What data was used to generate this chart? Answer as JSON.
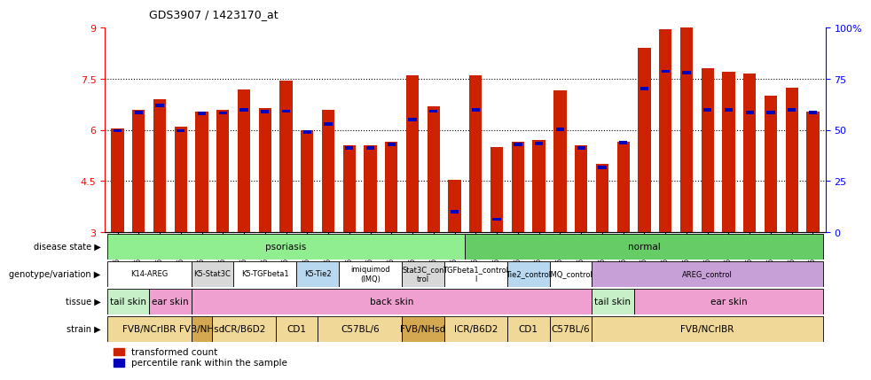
{
  "title": "GDS3907 / 1423170_at",
  "samples": [
    "GSM684694",
    "GSM684695",
    "GSM684696",
    "GSM684688",
    "GSM684689",
    "GSM684690",
    "GSM684700",
    "GSM684701",
    "GSM684704",
    "GSM684705",
    "GSM684706",
    "GSM684676",
    "GSM684677",
    "GSM684678",
    "GSM684682",
    "GSM684683",
    "GSM684684",
    "GSM684702",
    "GSM684703",
    "GSM684707",
    "GSM684708",
    "GSM684709",
    "GSM684679",
    "GSM684680",
    "GSM684681",
    "GSM684685",
    "GSM684686",
    "GSM684687",
    "GSM684697",
    "GSM684698",
    "GSM684699",
    "GSM684691",
    "GSM684692",
    "GSM684693"
  ],
  "red_values": [
    6.05,
    6.6,
    6.9,
    6.1,
    6.55,
    6.6,
    7.2,
    6.65,
    7.45,
    6.0,
    6.6,
    5.55,
    5.55,
    5.65,
    7.6,
    6.7,
    4.55,
    7.6,
    5.5,
    5.65,
    5.7,
    7.15,
    5.55,
    5.0,
    5.65,
    8.4,
    8.95,
    9.0,
    7.8,
    7.7,
    7.65,
    7.0,
    7.25,
    6.55
  ],
  "blue_values": [
    5.98,
    6.52,
    6.72,
    5.98,
    6.48,
    6.5,
    6.58,
    6.54,
    6.55,
    5.95,
    6.18,
    5.48,
    5.48,
    5.58,
    6.3,
    6.55,
    3.6,
    6.6,
    3.38,
    5.58,
    5.6,
    6.02,
    5.48,
    4.9,
    5.62,
    7.22,
    7.72,
    7.68,
    6.58,
    6.58,
    6.52,
    6.52,
    6.58,
    6.52
  ],
  "ylim_left": [
    3,
    9
  ],
  "ylim_right": [
    0,
    100
  ],
  "yticks_left": [
    3,
    4.5,
    6.0,
    7.5,
    9
  ],
  "yticks_right": [
    0,
    25,
    50,
    75,
    100
  ],
  "gridlines": [
    4.5,
    6.0,
    7.5
  ],
  "disease_state_groups": [
    {
      "label": "psoriasis",
      "start": 0,
      "end": 17,
      "color": "#90EE90"
    },
    {
      "label": "normal",
      "start": 17,
      "end": 34,
      "color": "#66CC66"
    }
  ],
  "genotype_groups": [
    {
      "label": "K14-AREG",
      "start": 0,
      "end": 4,
      "color": "#FFFFFF"
    },
    {
      "label": "K5-Stat3C",
      "start": 4,
      "end": 6,
      "color": "#D8D8D8"
    },
    {
      "label": "K5-TGFbeta1",
      "start": 6,
      "end": 9,
      "color": "#FFFFFF"
    },
    {
      "label": "K5-Tie2",
      "start": 9,
      "end": 11,
      "color": "#B8D8F0"
    },
    {
      "label": "imiquimod\n(IMQ)",
      "start": 11,
      "end": 14,
      "color": "#FFFFFF"
    },
    {
      "label": "Stat3C_con\ntrol",
      "start": 14,
      "end": 16,
      "color": "#D8D8D8"
    },
    {
      "label": "TGFbeta1_control\nl",
      "start": 16,
      "end": 19,
      "color": "#FFFFFF"
    },
    {
      "label": "Tie2_control",
      "start": 19,
      "end": 21,
      "color": "#B8D8F0"
    },
    {
      "label": "IMQ_control",
      "start": 21,
      "end": 23,
      "color": "#FFFFFF"
    },
    {
      "label": "AREG_control",
      "start": 23,
      "end": 34,
      "color": "#C8A0D8"
    }
  ],
  "tissue_groups": [
    {
      "label": "tail skin",
      "start": 0,
      "end": 2,
      "color": "#C8F0C8"
    },
    {
      "label": "ear skin",
      "start": 2,
      "end": 4,
      "color": "#F0A0D0"
    },
    {
      "label": "back skin",
      "start": 4,
      "end": 23,
      "color": "#F0A0D0"
    },
    {
      "label": "tail skin",
      "start": 23,
      "end": 25,
      "color": "#C8F0C8"
    },
    {
      "label": "ear skin",
      "start": 25,
      "end": 34,
      "color": "#F0A0D0"
    }
  ],
  "strain_groups": [
    {
      "label": "FVB/NCrIBR",
      "start": 0,
      "end": 4,
      "color": "#F0D898"
    },
    {
      "label": "FVB/NHsd",
      "start": 4,
      "end": 5,
      "color": "#D4A850"
    },
    {
      "label": "ICR/B6D2",
      "start": 5,
      "end": 8,
      "color": "#F0D898"
    },
    {
      "label": "CD1",
      "start": 8,
      "end": 10,
      "color": "#F0D898"
    },
    {
      "label": "C57BL/6",
      "start": 10,
      "end": 14,
      "color": "#F0D898"
    },
    {
      "label": "FVB/NHsd",
      "start": 14,
      "end": 16,
      "color": "#D4A850"
    },
    {
      "label": "ICR/B6D2",
      "start": 16,
      "end": 19,
      "color": "#F0D898"
    },
    {
      "label": "CD1",
      "start": 19,
      "end": 21,
      "color": "#F0D898"
    },
    {
      "label": "C57BL/6",
      "start": 21,
      "end": 23,
      "color": "#F0D898"
    },
    {
      "label": "FVB/NCrIBR",
      "start": 23,
      "end": 34,
      "color": "#F0D898"
    }
  ],
  "bar_color_red": "#CC2200",
  "bar_color_blue": "#0000BB",
  "bar_width": 0.6,
  "annotation_row_labels": [
    "disease state",
    "genotype/variation",
    "tissue",
    "strain"
  ],
  "legend_red": "transformed count",
  "legend_blue": "percentile rank within the sample"
}
